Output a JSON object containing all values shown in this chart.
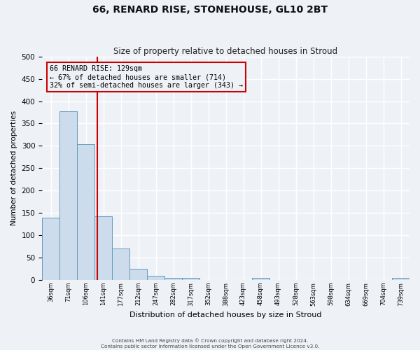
{
  "title": "66, RENARD RISE, STONEHOUSE, GL10 2BT",
  "subtitle": "Size of property relative to detached houses in Stroud",
  "xlabel": "Distribution of detached houses by size in Stroud",
  "ylabel": "Number of detached properties",
  "bin_labels": [
    "36sqm",
    "71sqm",
    "106sqm",
    "141sqm",
    "177sqm",
    "212sqm",
    "247sqm",
    "282sqm",
    "317sqm",
    "352sqm",
    "388sqm",
    "423sqm",
    "458sqm",
    "493sqm",
    "528sqm",
    "563sqm",
    "598sqm",
    "634sqm",
    "669sqm",
    "704sqm",
    "739sqm"
  ],
  "bar_values": [
    140,
    378,
    303,
    143,
    70,
    25,
    10,
    5,
    5,
    0,
    0,
    0,
    5,
    0,
    0,
    0,
    0,
    0,
    0,
    0,
    5
  ],
  "bar_color": "#ccdcec",
  "bar_edge_color": "#6699bb",
  "ylim": [
    0,
    500
  ],
  "yticks": [
    0,
    50,
    100,
    150,
    200,
    250,
    300,
    350,
    400,
    450,
    500
  ],
  "vline_x_index": 2.65,
  "annotation_title": "66 RENARD RISE: 129sqm",
  "annotation_line1": "← 67% of detached houses are smaller (714)",
  "annotation_line2": "32% of semi-detached houses are larger (343) →",
  "annotation_box_color": "#cc0000",
  "vline_color": "#cc0000",
  "background_color": "#eef2f7",
  "grid_color": "#ffffff",
  "footer_line1": "Contains HM Land Registry data © Crown copyright and database right 2024.",
  "footer_line2": "Contains public sector information licensed under the Open Government Licence v3.0."
}
